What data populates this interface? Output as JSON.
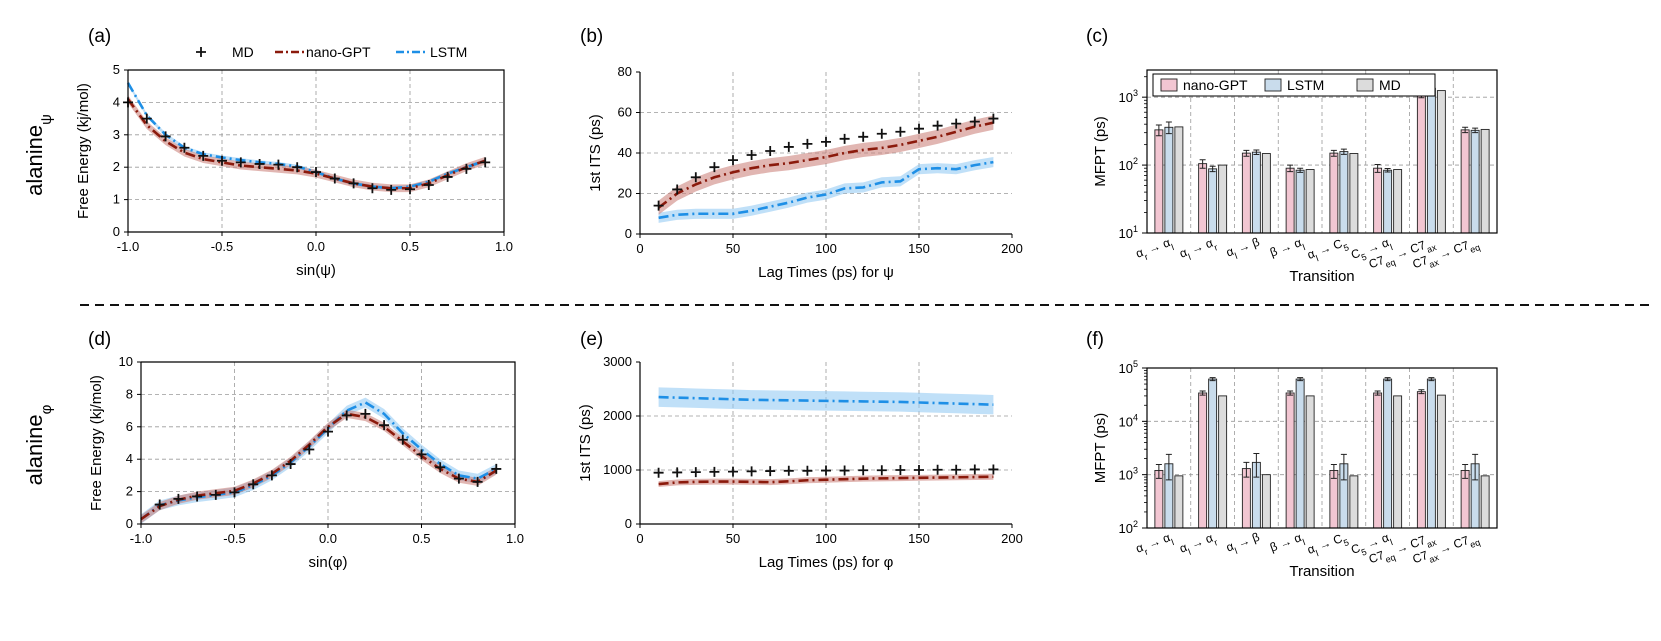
{
  "figure": {
    "separator": "dashed",
    "rows": [
      {
        "label_base": "alanine",
        "label_sub": "ψ"
      },
      {
        "label_base": "alanine",
        "label_sub": "φ"
      }
    ],
    "colors": {
      "md": "#111111",
      "gpt": "#8b1a0c",
      "gpt_band": "#c97a72",
      "lstm": "#1e8fe6",
      "lstm_band": "#8cc6f2",
      "bar_gpt": "#f2c6d2",
      "bar_lstm": "#c9dcec",
      "bar_md": "#dcdcdc"
    }
  },
  "chart_data": [
    {
      "id": "a",
      "panel_label": "(a)",
      "type": "line",
      "ylabel": "Free Energy (kj/mol)",
      "xlabel": "sin(ψ)",
      "xlim": [
        -1.0,
        1.0
      ],
      "ylim": [
        0,
        5
      ],
      "xticks": [
        "-1.0",
        "-0.5",
        "0.0",
        "0.5",
        "1.0"
      ],
      "yticks": [
        "0",
        "1",
        "2",
        "3",
        "4",
        "5"
      ],
      "legend": [
        "MD",
        "nano-GPT",
        "LSTM"
      ],
      "md": {
        "x": [
          -1.0,
          -0.9,
          -0.8,
          -0.7,
          -0.6,
          -0.5,
          -0.4,
          -0.3,
          -0.2,
          -0.1,
          0.0,
          0.1,
          0.2,
          0.3,
          0.4,
          0.5,
          0.6,
          0.7,
          0.8,
          0.9
        ],
        "y": [
          4.0,
          3.5,
          2.95,
          2.6,
          2.35,
          2.2,
          2.15,
          2.1,
          2.08,
          2.0,
          1.85,
          1.65,
          1.5,
          1.35,
          1.3,
          1.32,
          1.45,
          1.7,
          1.95,
          2.15
        ]
      },
      "gpt": {
        "x": [
          -1.0,
          -0.9,
          -0.8,
          -0.7,
          -0.6,
          -0.5,
          -0.4,
          -0.3,
          -0.2,
          -0.1,
          0.0,
          0.1,
          0.2,
          0.3,
          0.4,
          0.5,
          0.6,
          0.7,
          0.8,
          0.9
        ],
        "y": [
          4.1,
          3.3,
          2.8,
          2.45,
          2.25,
          2.15,
          2.05,
          2.0,
          1.95,
          1.9,
          1.8,
          1.65,
          1.5,
          1.4,
          1.35,
          1.35,
          1.5,
          1.75,
          2.0,
          2.2
        ],
        "band": 0.12
      },
      "lstm": {
        "x": [
          -1.0,
          -0.9,
          -0.8,
          -0.7,
          -0.6,
          -0.5,
          -0.4,
          -0.3,
          -0.2,
          -0.1,
          0.0,
          0.1,
          0.2,
          0.3,
          0.4,
          0.5,
          0.6,
          0.7,
          0.8,
          0.9
        ],
        "y": [
          4.6,
          3.6,
          3.0,
          2.6,
          2.4,
          2.3,
          2.22,
          2.15,
          2.1,
          2.02,
          1.85,
          1.65,
          1.5,
          1.4,
          1.35,
          1.4,
          1.55,
          1.8,
          2.0,
          2.2
        ],
        "band": 0.06
      }
    },
    {
      "id": "b",
      "panel_label": "(b)",
      "type": "line",
      "ylabel": "1st ITS (ps)",
      "xlabel": "Lag Times (ps) for ψ",
      "xlim": [
        0,
        200
      ],
      "ylim": [
        0,
        80
      ],
      "xticks": [
        "0",
        "50",
        "100",
        "150",
        "200"
      ],
      "yticks": [
        "0",
        "20",
        "40",
        "60",
        "80"
      ],
      "md": {
        "x": [
          10,
          20,
          30,
          40,
          50,
          60,
          70,
          80,
          90,
          100,
          110,
          120,
          130,
          140,
          150,
          160,
          170,
          180,
          190
        ],
        "y": [
          14,
          22,
          28,
          33,
          36.5,
          39,
          41,
          43,
          44.5,
          45.5,
          47,
          48,
          49.5,
          50.5,
          52,
          53.5,
          54.5,
          55.5,
          57
        ]
      },
      "gpt": {
        "x": [
          10,
          20,
          30,
          40,
          50,
          60,
          70,
          80,
          90,
          100,
          110,
          120,
          130,
          140,
          150,
          160,
          170,
          180,
          190
        ],
        "y": [
          13,
          20,
          24.5,
          28,
          30.5,
          32.5,
          34,
          35,
          36.5,
          38,
          40,
          41.5,
          42.5,
          44,
          46,
          48,
          50.5,
          53,
          55
        ],
        "band": 3.5
      },
      "lstm": {
        "x": [
          10,
          20,
          30,
          40,
          50,
          60,
          70,
          80,
          90,
          100,
          110,
          120,
          130,
          140,
          150,
          160,
          170,
          180,
          190
        ],
        "y": [
          8,
          9.5,
          10,
          10,
          10,
          11.5,
          13.5,
          15.5,
          18,
          19.5,
          22.5,
          23,
          25.5,
          26,
          32,
          32.5,
          32,
          34,
          35.5
        ],
        "band": 2.5
      }
    },
    {
      "id": "c",
      "panel_label": "(c)",
      "type": "bar",
      "scale": "log",
      "ylabel": "MFPT (ps)",
      "xlabel": "Transition",
      "ylim_exp": [
        1,
        3.4
      ],
      "yticks_exp": [
        1,
        2,
        3
      ],
      "legend": [
        "nano-GPT",
        "LSTM",
        "MD"
      ],
      "categories": [
        {
          "a": "α",
          "as": "r",
          "b": "α",
          "bs": "l"
        },
        {
          "a": "α",
          "as": "l",
          "b": "α",
          "bs": "r"
        },
        {
          "a": "α",
          "as": "l",
          "b": "β",
          "bs": ""
        },
        {
          "a": "β",
          "as": "",
          "b": "α",
          "bs": "l"
        },
        {
          "a": "α",
          "as": "l",
          "b": "C",
          "bs": "5"
        },
        {
          "a": "C",
          "as": "5",
          "b": "α",
          "bs": "l"
        },
        {
          "a": "C7",
          "as": "eq",
          "b": "C7",
          "bs": "ax"
        },
        {
          "a": "C7",
          "as": "ax",
          "b": "C7",
          "bs": "eq"
        }
      ],
      "series": [
        {
          "name": "nano-GPT",
          "values": [
            330,
            105,
            150,
            90,
            150,
            90,
            1180,
            330
          ],
          "errors": [
            60,
            15,
            15,
            10,
            15,
            12,
            200,
            30
          ]
        },
        {
          "name": "LSTM",
          "values": [
            360,
            88,
            155,
            84,
            158,
            84,
            1350,
            325
          ],
          "errors": [
            70,
            8,
            12,
            6,
            14,
            5,
            300,
            25
          ]
        },
        {
          "name": "MD",
          "values": [
            365,
            100,
            148,
            86,
            148,
            86,
            1250,
            335
          ],
          "errors": [
            0,
            0,
            0,
            0,
            0,
            0,
            0,
            0
          ]
        }
      ]
    },
    {
      "id": "d",
      "panel_label": "(d)",
      "type": "line",
      "ylabel": "Free Energy (kj/mol)",
      "xlabel": "sin(φ)",
      "xlim": [
        -1.0,
        1.0
      ],
      "ylim": [
        0,
        10
      ],
      "xticks": [
        "-1.0",
        "-0.5",
        "0.0",
        "0.5",
        "1.0"
      ],
      "yticks": [
        "0",
        "2",
        "4",
        "6",
        "8",
        "10"
      ],
      "md": {
        "x": [
          -0.9,
          -0.8,
          -0.7,
          -0.6,
          -0.5,
          -0.4,
          -0.3,
          -0.2,
          -0.1,
          0.0,
          0.1,
          0.2,
          0.3,
          0.4,
          0.5,
          0.6,
          0.7,
          0.8,
          0.9
        ],
        "y": [
          1.2,
          1.55,
          1.7,
          1.8,
          1.95,
          2.45,
          3.0,
          3.7,
          4.6,
          5.7,
          6.7,
          6.8,
          6.1,
          5.2,
          4.3,
          3.5,
          2.8,
          2.6,
          3.4
        ]
      },
      "gpt": {
        "x": [
          -1.0,
          -0.9,
          -0.8,
          -0.7,
          -0.6,
          -0.5,
          -0.4,
          -0.3,
          -0.2,
          -0.1,
          0.0,
          0.1,
          0.2,
          0.3,
          0.4,
          0.5,
          0.6,
          0.7,
          0.8,
          0.9
        ],
        "y": [
          0.3,
          1.1,
          1.5,
          1.75,
          1.9,
          2.05,
          2.5,
          3.1,
          3.9,
          4.9,
          6.0,
          6.8,
          6.6,
          6.0,
          5.1,
          4.2,
          3.4,
          2.8,
          2.6,
          3.3
        ],
        "band": 0.25
      },
      "lstm": {
        "x": [
          -1.0,
          -0.9,
          -0.8,
          -0.7,
          -0.6,
          -0.5,
          -0.4,
          -0.3,
          -0.2,
          -0.1,
          0.0,
          0.1,
          0.2,
          0.3,
          0.4,
          0.5,
          0.6,
          0.7,
          0.8,
          0.9
        ],
        "y": [
          0.3,
          1.15,
          1.45,
          1.65,
          1.8,
          1.95,
          2.4,
          3.0,
          3.8,
          4.8,
          5.9,
          7.0,
          7.5,
          6.8,
          5.6,
          4.6,
          3.7,
          3.0,
          2.8,
          3.4
        ],
        "band": 0.3
      }
    },
    {
      "id": "e",
      "panel_label": "(e)",
      "type": "line",
      "ylabel": "1st ITS (ps)",
      "xlabel": "Lag Times (ps) for φ",
      "xlim": [
        0,
        200
      ],
      "ylim": [
        0,
        3000
      ],
      "xticks": [
        "0",
        "50",
        "100",
        "150",
        "200"
      ],
      "yticks": [
        "0",
        "1000",
        "2000",
        "3000"
      ],
      "md": {
        "x": [
          10,
          20,
          30,
          40,
          50,
          60,
          70,
          80,
          90,
          100,
          110,
          120,
          130,
          140,
          150,
          160,
          170,
          180,
          190
        ],
        "y": [
          950,
          955,
          960,
          965,
          970,
          975,
          980,
          985,
          985,
          990,
          990,
          995,
          995,
          1000,
          1000,
          1005,
          1005,
          1010,
          1010
        ]
      },
      "gpt": {
        "x": [
          10,
          20,
          30,
          40,
          50,
          60,
          70,
          80,
          90,
          100,
          110,
          120,
          130,
          140,
          150,
          160,
          170,
          180,
          190
        ],
        "y": [
          740,
          770,
          780,
          785,
          785,
          780,
          775,
          790,
          810,
          820,
          830,
          840,
          845,
          850,
          855,
          860,
          865,
          870,
          875
        ],
        "band": 55
      },
      "lstm": {
        "x": [
          10,
          20,
          30,
          40,
          50,
          60,
          70,
          80,
          90,
          100,
          110,
          120,
          130,
          140,
          150,
          160,
          170,
          180,
          190
        ],
        "y": [
          2350,
          2340,
          2330,
          2320,
          2310,
          2300,
          2295,
          2290,
          2285,
          2280,
          2275,
          2270,
          2265,
          2260,
          2250,
          2240,
          2230,
          2220,
          2210
        ],
        "band": 180
      }
    },
    {
      "id": "f",
      "panel_label": "(f)",
      "type": "bar",
      "scale": "log",
      "ylabel": "MFPT (ps)",
      "xlabel": "Transition",
      "ylim_exp": [
        2,
        5
      ],
      "yticks_exp": [
        2,
        3,
        4,
        5
      ],
      "categories": [
        {
          "a": "α",
          "as": "r",
          "b": "α",
          "bs": "l"
        },
        {
          "a": "α",
          "as": "l",
          "b": "α",
          "bs": "r"
        },
        {
          "a": "α",
          "as": "l",
          "b": "β",
          "bs": ""
        },
        {
          "a": "β",
          "as": "",
          "b": "α",
          "bs": "l"
        },
        {
          "a": "α",
          "as": "l",
          "b": "C",
          "bs": "5"
        },
        {
          "a": "C",
          "as": "5",
          "b": "α",
          "bs": "l"
        },
        {
          "a": "C7",
          "as": "eq",
          "b": "C7",
          "bs": "ax"
        },
        {
          "a": "C7",
          "as": "ax",
          "b": "C7",
          "bs": "eq"
        }
      ],
      "series": [
        {
          "name": "nano-GPT",
          "values": [
            1200,
            34000,
            1300,
            34000,
            1200,
            34000,
            36000,
            1200
          ],
          "errors": [
            350,
            3000,
            400,
            3000,
            350,
            3000,
            3000,
            350
          ]
        },
        {
          "name": "LSTM",
          "values": [
            1600,
            62000,
            1700,
            62000,
            1600,
            62000,
            62000,
            1600
          ],
          "errors": [
            800,
            4000,
            800,
            4000,
            800,
            4000,
            4000,
            800
          ]
        },
        {
          "name": "MD",
          "values": [
            950,
            30000,
            1000,
            30000,
            950,
            30000,
            31000,
            950
          ],
          "errors": [
            0,
            0,
            0,
            0,
            0,
            0,
            0,
            0
          ]
        }
      ]
    }
  ]
}
